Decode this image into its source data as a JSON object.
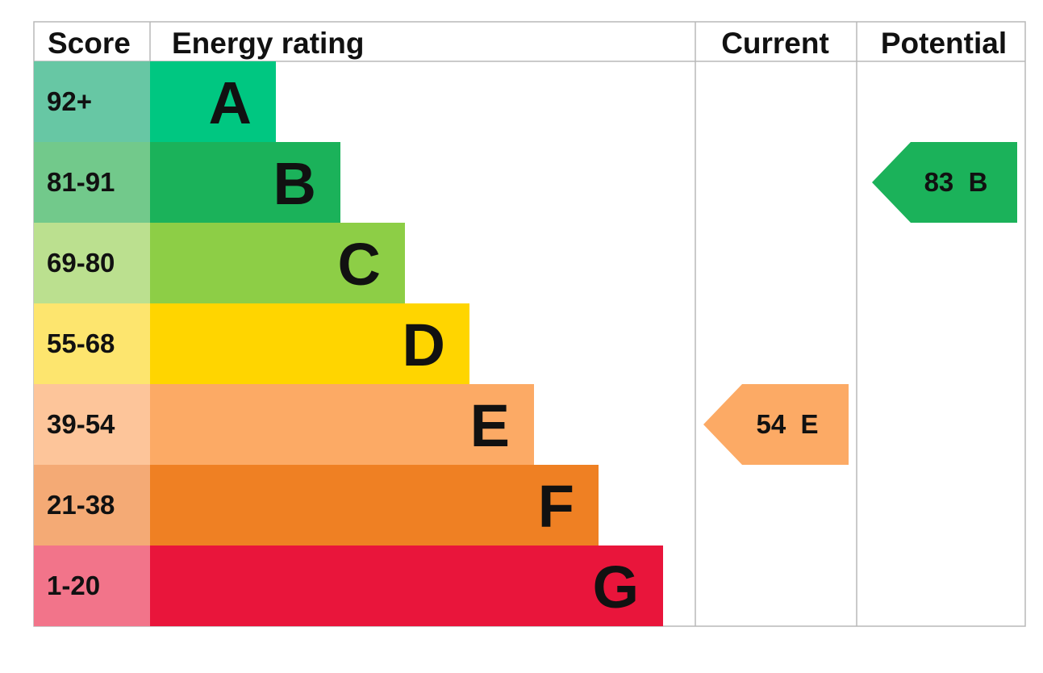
{
  "chart_data": {
    "type": "table",
    "headers": {
      "score": "Score",
      "rating": "Energy rating",
      "current": "Current",
      "potential": "Potential"
    },
    "bands": [
      {
        "letter": "A",
        "range": "92+",
        "bar_color": "#00c781",
        "score_color": "#67c7a4"
      },
      {
        "letter": "B",
        "range": "81-91",
        "bar_color": "#1bb25a",
        "score_color": "#72c98b"
      },
      {
        "letter": "C",
        "range": "69-80",
        "bar_color": "#8dce46",
        "score_color": "#bbe08f"
      },
      {
        "letter": "D",
        "range": "55-68",
        "bar_color": "#ffd500",
        "score_color": "#fde56e"
      },
      {
        "letter": "E",
        "range": "39-54",
        "bar_color": "#fcaa65",
        "score_color": "#fdc59a"
      },
      {
        "letter": "F",
        "range": "21-38",
        "bar_color": "#ef8023",
        "score_color": "#f4aa75"
      },
      {
        "letter": "G",
        "range": "1-20",
        "bar_color": "#e9153b",
        "score_color": "#f2748a"
      }
    ],
    "current": {
      "score": 54,
      "band": "E",
      "color": "#fcaa65"
    },
    "potential": {
      "score": 83,
      "band": "B",
      "color": "#1bb25a"
    },
    "grid_color": "#b8b8b8"
  }
}
